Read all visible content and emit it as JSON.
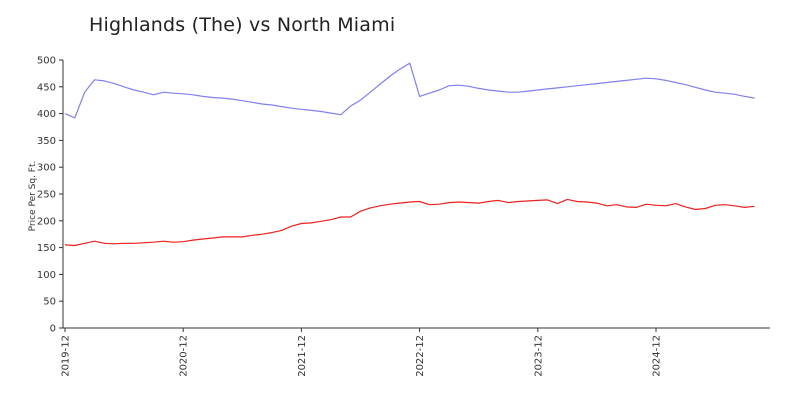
{
  "chart_data": {
    "type": "line",
    "title": "Highlands (The) vs North Miami",
    "xlabel": "",
    "ylabel": "Price Per Sq. Ft.",
    "ylim": [
      0,
      500
    ],
    "yticks": [
      0,
      50,
      100,
      150,
      200,
      250,
      300,
      350,
      400,
      450,
      500
    ],
    "xticks": [
      "2019-12",
      "2020-12",
      "2021-12",
      "2022-12",
      "2023-12",
      "2024-12"
    ],
    "grid": false,
    "legend": "none",
    "x": [
      "2019-12",
      "2020-01",
      "2020-02",
      "2020-03",
      "2020-04",
      "2020-05",
      "2020-06",
      "2020-07",
      "2020-08",
      "2020-09",
      "2020-10",
      "2020-11",
      "2020-12",
      "2021-01",
      "2021-02",
      "2021-03",
      "2021-04",
      "2021-05",
      "2021-06",
      "2021-07",
      "2021-08",
      "2021-09",
      "2021-10",
      "2021-11",
      "2021-12",
      "2022-01",
      "2022-02",
      "2022-03",
      "2022-04",
      "2022-05",
      "2022-06",
      "2022-07",
      "2022-08",
      "2022-09",
      "2022-10",
      "2022-11",
      "2022-12",
      "2023-01",
      "2023-02",
      "2023-03",
      "2023-04",
      "2023-05",
      "2023-06",
      "2023-07",
      "2023-08",
      "2023-09",
      "2023-10",
      "2023-11",
      "2023-12",
      "2024-01",
      "2024-02",
      "2024-03",
      "2024-04",
      "2024-05",
      "2024-06",
      "2024-07",
      "2024-08",
      "2024-09",
      "2024-10",
      "2024-11",
      "2024-12",
      "2025-01",
      "2025-02",
      "2025-03",
      "2025-04",
      "2025-05",
      "2025-06",
      "2025-07",
      "2025-08",
      "2025-09",
      "2025-10"
    ],
    "series": [
      {
        "color": "#8080ee",
        "values": [
          400,
          392,
          440,
          463,
          461,
          456,
          450,
          444,
          440,
          435,
          440,
          438,
          437,
          435,
          432,
          430,
          429,
          427,
          424,
          421,
          418,
          416,
          413,
          410,
          408,
          406,
          404,
          401,
          398,
          414,
          425,
          440,
          455,
          470,
          483,
          494,
          432,
          438,
          444,
          452,
          453,
          451,
          447,
          444,
          442,
          440,
          440,
          442,
          444,
          446,
          448,
          450,
          452,
          454,
          456,
          458,
          460,
          462,
          464,
          466,
          465,
          462,
          458,
          454,
          449,
          444,
          440,
          438,
          436,
          432,
          429
        ]
      },
      {
        "color": "#ee2020",
        "values": [
          155,
          154,
          158,
          162,
          158,
          157,
          158,
          158,
          159,
          160,
          162,
          160,
          161,
          164,
          166,
          168,
          170,
          170,
          170,
          173,
          175,
          178,
          182,
          190,
          195,
          196,
          199,
          202,
          207,
          207,
          218,
          224,
          228,
          231,
          233,
          235,
          236,
          230,
          231,
          234,
          235,
          234,
          233,
          236,
          238,
          234,
          236,
          237,
          238,
          239,
          232,
          240,
          236,
          235,
          233,
          228,
          230,
          226,
          225,
          231,
          229,
          228,
          232,
          226,
          221,
          223,
          229,
          230,
          228,
          225,
          227
        ]
      }
    ]
  }
}
